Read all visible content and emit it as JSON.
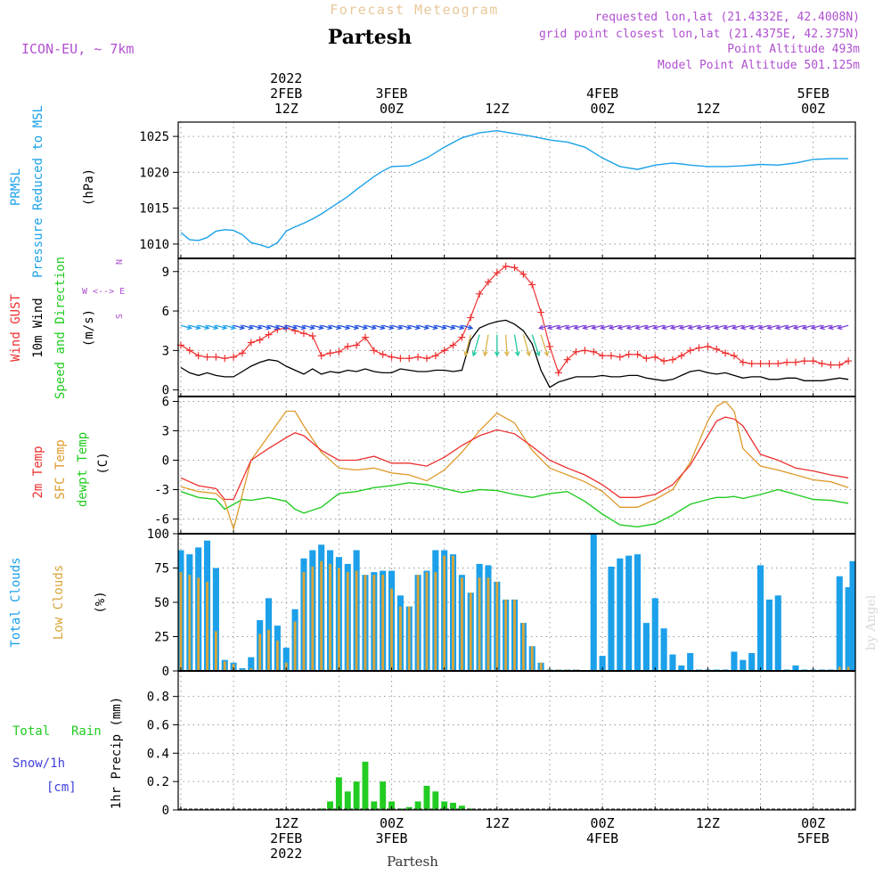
{
  "header": {
    "overline": "Forecast Meteogram",
    "title": "Partesh",
    "model": "ICON-EU, ~ 7km",
    "requested": "requested lon,lat (21.4332E, 42.4008N)",
    "grid_point": "grid point closest lon,lat (21.4375E, 42.375N)",
    "point_altitude": "Point Altitude 493m",
    "model_altitude": "Model Point Altitude 501.125m",
    "watermark": "by Angel",
    "footer": "Partesh"
  },
  "time_axis": {
    "top_labels": [
      {
        "hour": 12,
        "lines": [
          "2022",
          "2FEB",
          "12Z"
        ]
      },
      {
        "hour": 24,
        "lines": [
          "3FEB",
          "00Z"
        ]
      },
      {
        "hour": 36,
        "lines": [
          "12Z"
        ]
      },
      {
        "hour": 48,
        "lines": [
          "4FEB",
          "00Z"
        ]
      },
      {
        "hour": 60,
        "lines": [
          "12Z"
        ]
      },
      {
        "hour": 72,
        "lines": [
          "5FEB",
          "00Z"
        ]
      }
    ],
    "bottom_labels": [
      {
        "hour": 12,
        "lines": [
          "12Z",
          "2FEB",
          "2022"
        ]
      },
      {
        "hour": 24,
        "lines": [
          "00Z",
          "3FEB"
        ]
      },
      {
        "hour": 36,
        "lines": [
          "12Z"
        ]
      },
      {
        "hour": 48,
        "lines": [
          "00Z",
          "4FEB"
        ]
      },
      {
        "hour": 60,
        "lines": [
          "12Z"
        ]
      },
      {
        "hour": 72,
        "lines": [
          "00Z",
          "5FEB"
        ]
      }
    ]
  },
  "panel_labels": {
    "pressure": [
      "PRMSL",
      "Pressure Reduced to MSL",
      "(hPa)"
    ],
    "wind": [
      "Wind GUST",
      "10m Wind",
      "Speed and Direction",
      "(m/s)"
    ],
    "compass": [
      "N",
      "W <--> E",
      "S"
    ],
    "temp": [
      "2m Temp",
      "SFC Temp",
      "dewpt Temp",
      "(C)"
    ],
    "clouds": [
      "Total Clouds",
      "Low Clouds",
      "(%)"
    ],
    "precip": [
      "Total",
      "Rain",
      "Snow/1h",
      "[cm]",
      "1hr Precip (mm)"
    ]
  },
  "colors": {
    "pressure": "#1ba1e8",
    "gust": "#ee3030",
    "wind": "#000000",
    "temp2m": "#ee3030",
    "sfctemp": "#dd9a2a",
    "dewpt": "#22cc22",
    "total_clouds": "#1ca0ea",
    "low_clouds": "#d8a53a",
    "rain": "#22cc22",
    "snow": "#4040dd",
    "compass": "#b050d0",
    "title_overline": "#e8c89a",
    "info": "#b050d0"
  },
  "chart_data": [
    {
      "type": "line",
      "name": "pressure",
      "ylim": [
        1008,
        1027
      ],
      "yticks": [
        1010,
        1015,
        1020,
        1025
      ],
      "x": [
        0,
        1,
        2,
        3,
        4,
        5,
        6,
        7,
        8,
        9,
        10,
        11,
        12,
        13,
        14,
        15,
        16,
        17,
        18,
        19,
        20,
        21,
        22,
        23,
        24,
        26,
        28,
        30,
        32,
        34,
        36,
        38,
        40,
        42,
        44,
        46,
        48,
        50,
        52,
        54,
        56,
        58,
        60,
        62,
        64,
        66,
        68,
        70,
        72,
        74,
        76
      ],
      "series": [
        {
          "values": [
            1011.6,
            1010.6,
            1010.5,
            1010.9,
            1011.8,
            1012.0,
            1011.9,
            1011.3,
            1010.2,
            1009.9,
            1009.5,
            1010.2,
            1011.8,
            1012.4,
            1012.9,
            1013.5,
            1014.2,
            1015.0,
            1015.8,
            1016.6,
            1017.6,
            1018.5,
            1019.4,
            1020.2,
            1020.8,
            1020.9,
            1022.0,
            1023.5,
            1024.8,
            1025.5,
            1025.8,
            1025.4,
            1025.0,
            1024.5,
            1024.2,
            1023.5,
            1022.0,
            1020.8,
            1020.4,
            1021.0,
            1021.3,
            1021.0,
            1020.8,
            1020.8,
            1020.9,
            1021.1,
            1021.0,
            1021.3,
            1021.8,
            1021.9,
            1021.9
          ]
        }
      ]
    },
    {
      "type": "line",
      "name": "wind",
      "ylim": [
        -0.5,
        10
      ],
      "yticks": [
        0,
        3,
        6,
        9
      ],
      "x": [
        0,
        1,
        2,
        3,
        4,
        5,
        6,
        7,
        8,
        9,
        10,
        11,
        12,
        13,
        14,
        15,
        16,
        17,
        18,
        19,
        20,
        21,
        22,
        23,
        24,
        25,
        26,
        27,
        28,
        29,
        30,
        31,
        32,
        33,
        34,
        35,
        36,
        37,
        38,
        39,
        40,
        41,
        42,
        43,
        44,
        45,
        46,
        47,
        48,
        49,
        50,
        51,
        52,
        53,
        54,
        55,
        56,
        57,
        58,
        59,
        60,
        61,
        62,
        63,
        64,
        65,
        66,
        67,
        68,
        69,
        70,
        71,
        72,
        73,
        74,
        75,
        76
      ],
      "series": [
        {
          "name": "gust",
          "values": [
            3.4,
            3.0,
            2.6,
            2.5,
            2.5,
            2.4,
            2.5,
            2.8,
            3.6,
            3.8,
            4.2,
            4.6,
            4.7,
            4.5,
            4.3,
            4.1,
            2.6,
            2.8,
            2.9,
            3.3,
            3.4,
            4.0,
            3.0,
            2.7,
            2.5,
            2.4,
            2.4,
            2.5,
            2.4,
            2.6,
            3.0,
            3.4,
            4.0,
            5.5,
            7.3,
            8.2,
            8.9,
            9.4,
            9.3,
            8.8,
            8.0,
            5.9,
            3.3,
            1.3,
            2.3,
            2.9,
            3.0,
            2.9,
            2.6,
            2.6,
            2.5,
            2.7,
            2.7,
            2.4,
            2.5,
            2.2,
            2.3,
            2.6,
            3.0,
            3.2,
            3.3,
            3.1,
            2.8,
            2.6,
            2.1,
            2.0,
            2.0,
            2.0,
            2.0,
            2.1,
            2.1,
            2.2,
            2.2,
            2.0,
            1.9,
            1.9,
            2.2
          ]
        },
        {
          "name": "wind",
          "values": [
            1.7,
            1.3,
            1.1,
            1.3,
            1.1,
            1.0,
            1.0,
            1.4,
            1.8,
            2.1,
            2.3,
            2.2,
            1.8,
            1.5,
            1.2,
            1.6,
            1.2,
            1.4,
            1.3,
            1.5,
            1.4,
            1.6,
            1.4,
            1.3,
            1.3,
            1.6,
            1.5,
            1.4,
            1.4,
            1.5,
            1.5,
            1.4,
            1.5,
            3.8,
            4.7,
            5.0,
            5.2,
            5.3,
            5.0,
            4.5,
            3.5,
            1.5,
            0.2,
            0.6,
            0.8,
            1.0,
            1.0,
            1.0,
            1.1,
            1.0,
            1.0,
            1.1,
            1.1,
            0.9,
            0.8,
            0.7,
            0.8,
            1.1,
            1.4,
            1.5,
            1.3,
            1.2,
            1.3,
            1.1,
            0.9,
            1.0,
            1.0,
            0.8,
            0.8,
            0.9,
            0.9,
            0.7,
            0.7,
            0.7,
            0.8,
            0.9,
            0.8
          ]
        }
      ],
      "arrow_directions_deg": [
        -150,
        -150,
        -150,
        -150,
        -150,
        -150,
        -150,
        -150,
        -150,
        -150,
        -150,
        -150,
        -150,
        -150,
        -150,
        -150,
        -150,
        -150,
        -150,
        -150,
        -150,
        -150,
        -150,
        -150,
        -150,
        -150,
        -150,
        -150,
        -150,
        -150,
        -150,
        -150,
        -150,
        -130,
        -60,
        -30,
        0,
        10,
        30,
        60,
        80,
        110,
        130,
        150,
        150,
        150,
        150,
        150,
        150,
        150,
        150,
        150,
        150,
        150,
        150,
        150,
        150,
        150,
        150,
        150,
        150,
        150,
        150,
        150,
        150,
        150,
        150,
        150,
        150,
        150,
        150,
        150,
        150,
        150,
        150,
        150,
        150
      ]
    },
    {
      "type": "line",
      "name": "temperature",
      "ylim": [
        -7.5,
        6.5
      ],
      "yticks": [
        -6,
        -3,
        0,
        3,
        6
      ],
      "x": [
        0,
        2,
        4,
        5,
        6,
        7,
        8,
        10,
        12,
        13,
        14,
        16,
        18,
        20,
        22,
        24,
        26,
        28,
        30,
        32,
        34,
        36,
        38,
        40,
        42,
        44,
        46,
        48,
        50,
        52,
        54,
        56,
        58,
        60,
        61,
        62,
        63,
        64,
        66,
        68,
        70,
        72,
        74,
        76
      ],
      "series": [
        {
          "name": "2m",
          "values": [
            -1.8,
            -2.6,
            -2.9,
            -4.0,
            -4.0,
            -2.0,
            0.0,
            1.2,
            2.3,
            2.8,
            2.5,
            1.0,
            0.0,
            0.0,
            0.4,
            -0.3,
            -0.3,
            -0.6,
            0.3,
            1.5,
            2.5,
            3.1,
            2.7,
            1.4,
            0.0,
            -0.8,
            -1.5,
            -2.5,
            -3.8,
            -3.8,
            -3.5,
            -2.5,
            -0.5,
            2.5,
            4.0,
            4.4,
            4.2,
            3.5,
            0.6,
            0.0,
            -0.8,
            -1.1,
            -1.5,
            -1.8
          ]
        },
        {
          "name": "sfc",
          "values": [
            -2.7,
            -3.2,
            -3.4,
            -4.2,
            -7.0,
            -3.5,
            0.0,
            2.5,
            5.0,
            5.0,
            3.5,
            0.8,
            -0.8,
            -1.0,
            -0.8,
            -1.3,
            -1.5,
            -2.1,
            -1.0,
            0.8,
            3.0,
            4.8,
            3.8,
            1.0,
            -0.8,
            -1.5,
            -2.2,
            -3.2,
            -4.8,
            -4.8,
            -4.0,
            -3.0,
            -0.2,
            4.0,
            5.5,
            6.0,
            5.0,
            1.2,
            -0.6,
            -1.0,
            -1.5,
            -2.0,
            -2.2,
            -2.8
          ]
        },
        {
          "name": "dewpt",
          "values": [
            -3.2,
            -3.8,
            -4.0,
            -5.0,
            -4.5,
            -4.0,
            -4.1,
            -3.8,
            -4.2,
            -5.0,
            -5.4,
            -4.8,
            -3.4,
            -3.2,
            -2.8,
            -2.6,
            -2.3,
            -2.5,
            -2.9,
            -3.3,
            -3.0,
            -3.1,
            -3.5,
            -3.8,
            -3.4,
            -3.2,
            -4.2,
            -5.5,
            -6.6,
            -6.8,
            -6.5,
            -5.6,
            -4.5,
            -4.0,
            -3.8,
            -3.8,
            -3.7,
            -3.9,
            -3.5,
            -3.0,
            -3.5,
            -4.0,
            -4.1,
            -4.4
          ]
        }
      ]
    },
    {
      "type": "bar",
      "name": "clouds",
      "ylim": [
        0,
        100
      ],
      "yticks": [
        0,
        25,
        50,
        75,
        100
      ],
      "x": [
        0,
        1,
        2,
        3,
        4,
        5,
        6,
        7,
        8,
        9,
        10,
        11,
        12,
        13,
        14,
        15,
        16,
        17,
        18,
        19,
        20,
        21,
        22,
        23,
        24,
        25,
        26,
        27,
        28,
        29,
        30,
        31,
        32,
        33,
        34,
        35,
        36,
        37,
        38,
        39,
        40,
        41,
        42,
        43,
        44,
        45,
        46,
        47,
        48,
        49,
        50,
        51,
        52,
        53,
        54,
        55,
        56,
        57,
        58,
        59,
        60,
        61,
        62,
        63,
        64,
        65,
        66,
        67,
        68,
        69,
        70,
        71,
        72,
        73,
        74,
        75,
        76
      ],
      "series": [
        {
          "name": "total",
          "values": [
            88,
            85,
            90,
            95,
            75,
            8,
            6,
            2,
            10,
            37,
            53,
            33,
            17,
            45,
            82,
            88,
            92,
            88,
            83,
            78,
            88,
            70,
            72,
            73,
            73,
            55,
            47,
            70,
            73,
            88,
            88,
            85,
            70,
            57,
            78,
            77,
            65,
            52,
            52,
            35,
            18,
            6,
            1,
            1,
            1,
            1,
            0,
            100,
            11,
            76,
            82,
            84,
            85,
            35,
            53,
            31,
            12,
            4,
            13,
            1,
            1,
            1,
            1,
            14,
            8,
            13,
            77,
            52,
            55,
            1,
            4,
            1,
            1,
            1,
            1,
            69,
            61
          ]
        },
        {
          "name": "low",
          "values": [
            72,
            70,
            68,
            65,
            29,
            7,
            5,
            1,
            2,
            27,
            30,
            22,
            6,
            36,
            72,
            76,
            80,
            78,
            75,
            72,
            73,
            70,
            70,
            70,
            60,
            47,
            47,
            70,
            72,
            72,
            84,
            84,
            68,
            57,
            68,
            68,
            65,
            52,
            52,
            35,
            18,
            6,
            1,
            1,
            1,
            1,
            0,
            0,
            0,
            0,
            0,
            0,
            0,
            0,
            0,
            0,
            0,
            0,
            0,
            0,
            0,
            0,
            0,
            0,
            0,
            0,
            0,
            0,
            0,
            0,
            0,
            0,
            0,
            0,
            0,
            3,
            3
          ]
        }
      ],
      "extra_total": [
        [
          76,
          80
        ]
      ]
    },
    {
      "type": "bar",
      "name": "precip",
      "ylim": [
        0,
        0.98
      ],
      "yticks": [
        0,
        0.2,
        0.4,
        0.6,
        0.8
      ],
      "x": [
        16,
        17,
        18,
        19,
        20,
        21,
        22,
        23,
        24,
        25,
        26,
        27,
        28,
        29,
        30,
        31,
        32,
        33
      ],
      "series": [
        {
          "name": "rain",
          "values": [
            0.01,
            0.06,
            0.23,
            0.13,
            0.2,
            0.34,
            0.06,
            0.2,
            0.06,
            0.01,
            0.02,
            0.06,
            0.17,
            0.13,
            0.06,
            0.05,
            0.03,
            0.01
          ]
        }
      ]
    }
  ]
}
